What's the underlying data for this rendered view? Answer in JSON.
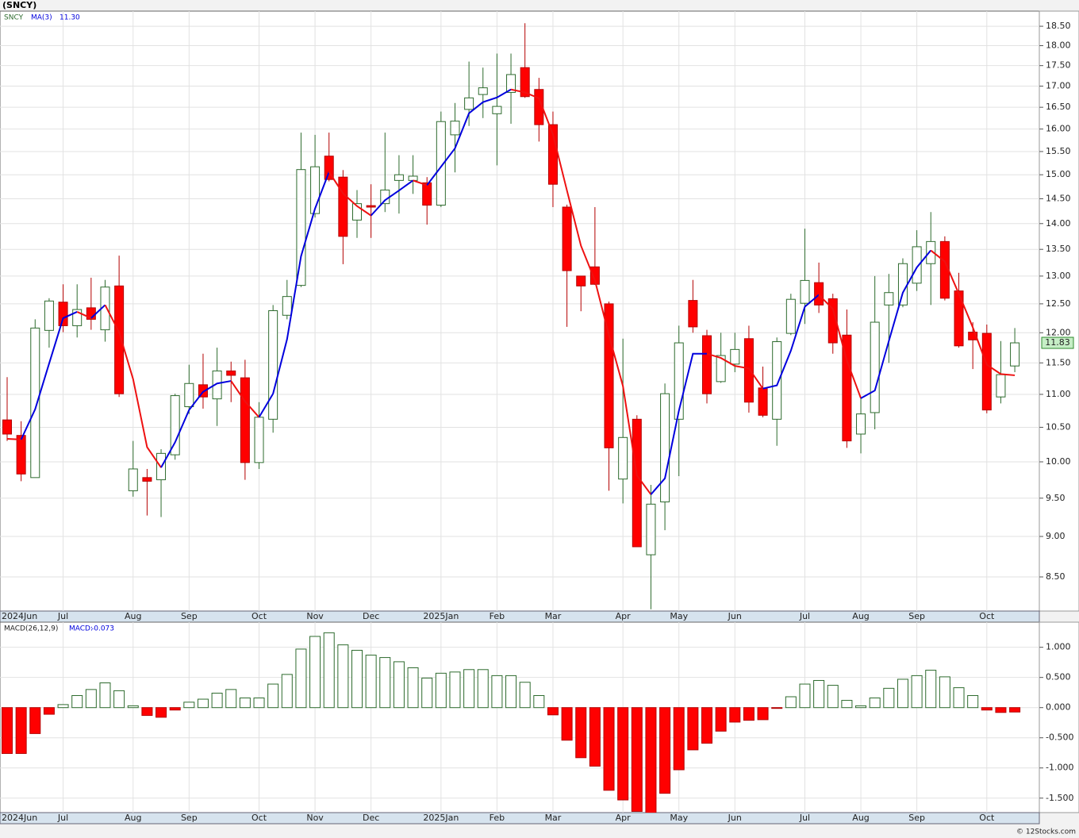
{
  "chart_data": [
    {
      "type": "candlestick",
      "title": "(SNCY)",
      "symbol": "SNCY",
      "categories": [
        "2024Jun",
        null,
        null,
        null,
        "Jul",
        null,
        null,
        null,
        null,
        "Aug",
        null,
        null,
        null,
        "Sep",
        null,
        null,
        null,
        null,
        "Oct",
        null,
        null,
        null,
        "Nov",
        null,
        null,
        null,
        "Dec",
        null,
        null,
        null,
        null,
        "2025Jan",
        null,
        null,
        null,
        "Feb",
        null,
        null,
        null,
        "Mar",
        null,
        null,
        null,
        null,
        "Apr",
        null,
        null,
        null,
        "May",
        null,
        null,
        null,
        "Jun",
        null,
        null,
        null,
        null,
        "Jul",
        null,
        null,
        null,
        "Aug",
        null,
        null,
        null,
        "Sep",
        null,
        null,
        null,
        null,
        "Oct",
        null,
        null
      ],
      "open": [
        10.61,
        10.38,
        9.78,
        12.04,
        12.53,
        12.12,
        12.43,
        12.05,
        12.82,
        9.6,
        9.78,
        9.75,
        10.1,
        10.81,
        11.15,
        10.93,
        11.37,
        11.26,
        9.99,
        10.62,
        12.3,
        12.83,
        14.2,
        15.4,
        14.95,
        14.07,
        14.36,
        14.4,
        14.88,
        14.88,
        14.83,
        14.37,
        15.87,
        16.45,
        16.8,
        16.35,
        16.85,
        17.45,
        16.92,
        16.1,
        14.33,
        13.0,
        13.17,
        12.5,
        9.76,
        10.62,
        8.77,
        9.45,
        10.62,
        12.56,
        11.95,
        11.2,
        11.48,
        11.9,
        11.1,
        10.62,
        11.99,
        12.51,
        12.88,
        12.59,
        11.96,
        10.4,
        10.72,
        12.48,
        12.48,
        12.87,
        13.23,
        13.65,
        12.73,
        12.01,
        11.99,
        10.96,
        11.45
      ],
      "high": [
        11.27,
        10.59,
        12.23,
        12.6,
        12.85,
        12.85,
        12.97,
        12.93,
        13.38,
        10.3,
        9.9,
        10.18,
        11.01,
        11.47,
        11.65,
        11.75,
        11.52,
        11.55,
        10.88,
        12.48,
        12.93,
        15.92,
        15.87,
        15.92,
        15.1,
        14.68,
        14.8,
        15.92,
        15.42,
        15.42,
        14.95,
        16.4,
        16.6,
        17.6,
        17.45,
        17.8,
        17.8,
        18.58,
        17.2,
        16.4,
        14.38,
        13.0,
        14.33,
        12.54,
        11.9,
        10.68,
        9.68,
        11.17,
        12.12,
        12.93,
        12.05,
        12.0,
        12.0,
        12.12,
        11.44,
        11.92,
        12.68,
        13.9,
        13.25,
        12.68,
        12.4,
        10.95,
        13.0,
        13.04,
        13.33,
        13.87,
        14.23,
        13.75,
        13.06,
        12.18,
        12.14,
        11.86,
        12.08
      ],
      "low": [
        10.3,
        9.73,
        9.78,
        11.75,
        12.01,
        11.92,
        12.05,
        11.85,
        10.96,
        9.52,
        9.27,
        9.25,
        10.03,
        10.7,
        10.78,
        10.52,
        10.88,
        9.75,
        9.9,
        10.42,
        12.23,
        12.8,
        14.12,
        14.86,
        13.22,
        13.72,
        13.72,
        14.23,
        14.2,
        14.6,
        13.98,
        14.33,
        15.05,
        16.07,
        16.25,
        15.2,
        16.12,
        16.72,
        15.72,
        14.33,
        12.1,
        12.37,
        12.84,
        9.6,
        9.43,
        8.87,
        8.12,
        9.08,
        9.8,
        12.0,
        10.86,
        11.18,
        11.35,
        10.72,
        10.65,
        10.23,
        11.96,
        12.15,
        12.34,
        11.65,
        10.2,
        10.12,
        10.47,
        11.5,
        12.44,
        12.73,
        12.48,
        12.56,
        11.75,
        11.4,
        10.71,
        10.86,
        11.35
      ],
      "close": [
        10.4,
        9.83,
        12.08,
        12.55,
        12.12,
        12.4,
        12.23,
        12.8,
        11.01,
        9.9,
        9.73,
        10.12,
        10.98,
        11.17,
        10.96,
        11.37,
        11.3,
        9.99,
        10.65,
        12.38,
        12.63,
        15.11,
        15.17,
        14.9,
        13.75,
        14.4,
        14.33,
        14.68,
        15.0,
        14.97,
        14.37,
        16.17,
        16.18,
        16.72,
        16.96,
        16.52,
        17.28,
        16.75,
        16.1,
        14.8,
        13.1,
        12.82,
        12.85,
        10.2,
        10.35,
        8.87,
        9.42,
        11.01,
        11.83,
        12.1,
        11.01,
        11.62,
        11.72,
        10.88,
        10.68,
        11.85,
        12.58,
        12.92,
        12.48,
        11.83,
        10.3,
        10.7,
        12.18,
        12.7,
        13.23,
        13.55,
        13.65,
        12.6,
        11.78,
        11.88,
        10.76,
        11.31,
        11.83
      ],
      "up_color": "#ffffff",
      "up_edge": "#2e6b2e",
      "down_color": "#ff0000",
      "down_edge": "#b40000",
      "log_scale": true,
      "grid": true,
      "ylim": [
        8.1,
        18.9
      ],
      "yticks": [
        {
          "value": 18.5,
          "label": "18.50"
        },
        {
          "value": 18,
          "label": "18.00"
        },
        {
          "value": 17.5,
          "label": "17.50"
        },
        {
          "value": 17,
          "label": "17.00"
        },
        {
          "value": 16.5,
          "label": "16.50"
        },
        {
          "value": 16,
          "label": "16.00"
        },
        {
          "value": 15.5,
          "label": "15.50"
        },
        {
          "value": 15,
          "label": "15.00"
        },
        {
          "value": 14.5,
          "label": "14.50"
        },
        {
          "value": 14,
          "label": "14.00"
        },
        {
          "value": 13.5,
          "label": "13.50"
        },
        {
          "value": 13,
          "label": "13.00"
        },
        {
          "value": 12.5,
          "label": "12.50"
        },
        {
          "value": 12,
          "label": "12.00"
        },
        {
          "value": 11.5,
          "label": "11.50"
        },
        {
          "value": 11,
          "label": "11.00"
        },
        {
          "value": 10.5,
          "label": "10.50"
        },
        {
          "value": 10,
          "label": "10.00"
        },
        {
          "value": 9.5,
          "label": "9.50"
        },
        {
          "value": 9,
          "label": "9.00"
        },
        {
          "value": 8.5,
          "label": "8.50"
        }
      ],
      "overlay": {
        "name": "MA(3)",
        "rising_color": "#0000dd",
        "falling_color": "#ee1111",
        "values": [
          10.33,
          10.32,
          10.77,
          11.49,
          12.25,
          12.36,
          12.25,
          12.48,
          12.01,
          11.24,
          10.21,
          9.92,
          10.28,
          10.76,
          11.04,
          11.17,
          11.21,
          10.89,
          10.65,
          11.01,
          11.89,
          13.37,
          14.3,
          15.06,
          14.61,
          14.35,
          14.16,
          14.47,
          14.67,
          14.88,
          14.78,
          15.17,
          15.57,
          16.36,
          16.62,
          16.73,
          16.92,
          16.85,
          16.71,
          15.88,
          14.67,
          13.57,
          12.92,
          11.96,
          11.13,
          9.81,
          9.55,
          9.77,
          10.75,
          11.65,
          11.65,
          11.58,
          11.45,
          11.41,
          11.09,
          11.14,
          11.7,
          12.45,
          12.66,
          12.41,
          11.54,
          10.94,
          11.06,
          11.86,
          12.7,
          13.16,
          13.48,
          13.27,
          12.68,
          12.09,
          11.47,
          11.32,
          11.3
        ],
        "value_labels": [
          null,
          null,
          null,
          null,
          null,
          null,
          null,
          null,
          null,
          null,
          null,
          null,
          null,
          null,
          null,
          null,
          null,
          null,
          null,
          null,
          null,
          null,
          null,
          null,
          null,
          null,
          null,
          null,
          null,
          null,
          null,
          null,
          null,
          null,
          null,
          null,
          null,
          null,
          null,
          null,
          null,
          null,
          null,
          null,
          null,
          null,
          null,
          null,
          null,
          null,
          null,
          null,
          null,
          null,
          null,
          null,
          null,
          null,
          null,
          null,
          null,
          null,
          null,
          null,
          null,
          null,
          null,
          null,
          null,
          null,
          null,
          null,
          "11.30"
        ]
      }
    },
    {
      "type": "macd_histogram",
      "name": "MACD(26,12,9)",
      "readout_label": "MACD:",
      "values": [
        -0.76,
        -0.76,
        -0.43,
        -0.11,
        0.05,
        0.2,
        0.3,
        0.41,
        0.28,
        0.03,
        -0.13,
        -0.16,
        -0.04,
        0.09,
        0.14,
        0.24,
        0.3,
        0.16,
        0.16,
        0.39,
        0.55,
        0.97,
        1.18,
        1.24,
        1.04,
        0.95,
        0.87,
        0.83,
        0.76,
        0.66,
        0.49,
        0.57,
        0.59,
        0.63,
        0.63,
        0.53,
        0.53,
        0.42,
        0.2,
        -0.12,
        -0.54,
        -0.83,
        -0.97,
        -1.37,
        -1.53,
        -1.72,
        -1.75,
        -1.42,
        -1.03,
        -0.7,
        -0.59,
        -0.39,
        -0.24,
        -0.21,
        -0.2,
        -0.01,
        0.18,
        0.39,
        0.45,
        0.37,
        0.12,
        0.03,
        0.16,
        0.32,
        0.47,
        0.53,
        0.62,
        0.51,
        0.33,
        0.2,
        -0.04,
        -0.08,
        -0.073
      ],
      "positive_color": "#ffffff",
      "positive_edge": "#2e6b2e",
      "negative_color": "#ff0000",
      "negative_edge": "#b40000",
      "grid": true,
      "ylim": [
        -1.74,
        1.39
      ],
      "yticks": [
        {
          "value": 1,
          "label": "1.000"
        },
        {
          "value": 0.5,
          "label": "0.500"
        },
        {
          "value": 0,
          "label": "0.000"
        },
        {
          "value": -0.5,
          "label": "-0.500"
        },
        {
          "value": -1,
          "label": "-1.000"
        },
        {
          "value": -1.5,
          "label": "-1.500"
        }
      ]
    }
  ],
  "footer": "© 12Stocks.com"
}
